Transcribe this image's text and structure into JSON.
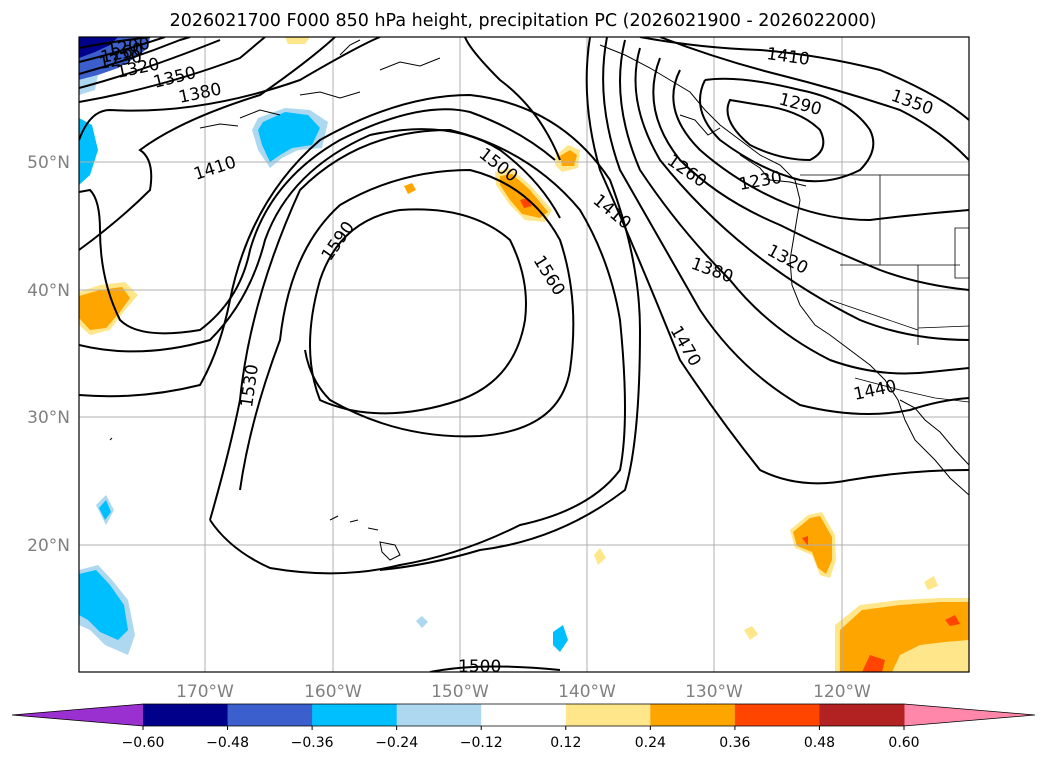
{
  "title": "2026021700 F000 850 hPa height, precipitation PC (2026021900 - 2026022000)",
  "map": {
    "lat_labels": [
      "50°N",
      "40°N",
      "30°N",
      "20°N"
    ],
    "lon_labels": [
      "170°W",
      "160°W",
      "150°W",
      "140°W",
      "130°W",
      "120°W"
    ],
    "contour_labels": [
      "1200",
      "1230",
      "1260",
      "1290",
      "1320",
      "1350",
      "1380",
      "1410",
      "1440",
      "1470",
      "1500",
      "1530",
      "1560",
      "1590",
      "1500",
      "1410",
      "1380",
      "1350",
      "1320",
      "1290",
      "1260",
      "1230",
      "1410",
      "1410",
      "1500"
    ]
  },
  "colorbar": {
    "ticks": [
      "−0.60",
      "−0.48",
      "−0.36",
      "−0.24",
      "−0.12",
      "0.12",
      "0.24",
      "0.36",
      "0.48",
      "0.60"
    ],
    "colors": {
      "under": "#9b30d0",
      "bin_1": "#00008b",
      "bin_2": "#3b5fcc",
      "bin_3": "#00bfff",
      "bin_4": "#add8f0",
      "bin_5": "#ffffff",
      "bin_6": "#ffe68a",
      "bin_7": "#ffa500",
      "bin_8": "#ff4500",
      "bin_9": "#b22222",
      "over": "#ff88aa"
    }
  }
}
